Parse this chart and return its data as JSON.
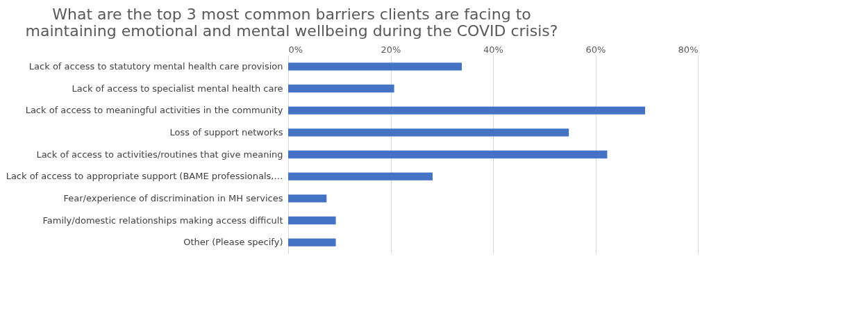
{
  "chart_data": {
    "type": "bar",
    "orientation": "horizontal",
    "title": "What are the top 3 most common barriers clients are facing to maintaining emotional and mental wellbeing during the COVID crisis?",
    "categories": [
      "Lack of access to statutory mental health care provision",
      "Lack of access to specialist mental health care",
      "Lack of access to meaningful activities in the community",
      "Loss of support networks",
      "Lack of access to activities/routines that give meaning",
      "Lack of access to appropriate support (BAME professionals,…",
      "Fear/experience of discrimination in MH services",
      "Family/domestic relationships making access difficult",
      "Other (Please specify)"
    ],
    "values": [
      33.9,
      20.7,
      69.7,
      54.8,
      62.3,
      28.2,
      7.5,
      9.3,
      9.3
    ],
    "color": "#4472c4",
    "xlim": [
      0,
      80
    ],
    "xticks": [
      {
        "value": 0,
        "label": "0%"
      },
      {
        "value": 20,
        "label": "20%"
      },
      {
        "value": 40,
        "label": "40%"
      },
      {
        "value": 60,
        "label": "60%"
      },
      {
        "value": 80,
        "label": "80%"
      }
    ],
    "grid": "x"
  }
}
